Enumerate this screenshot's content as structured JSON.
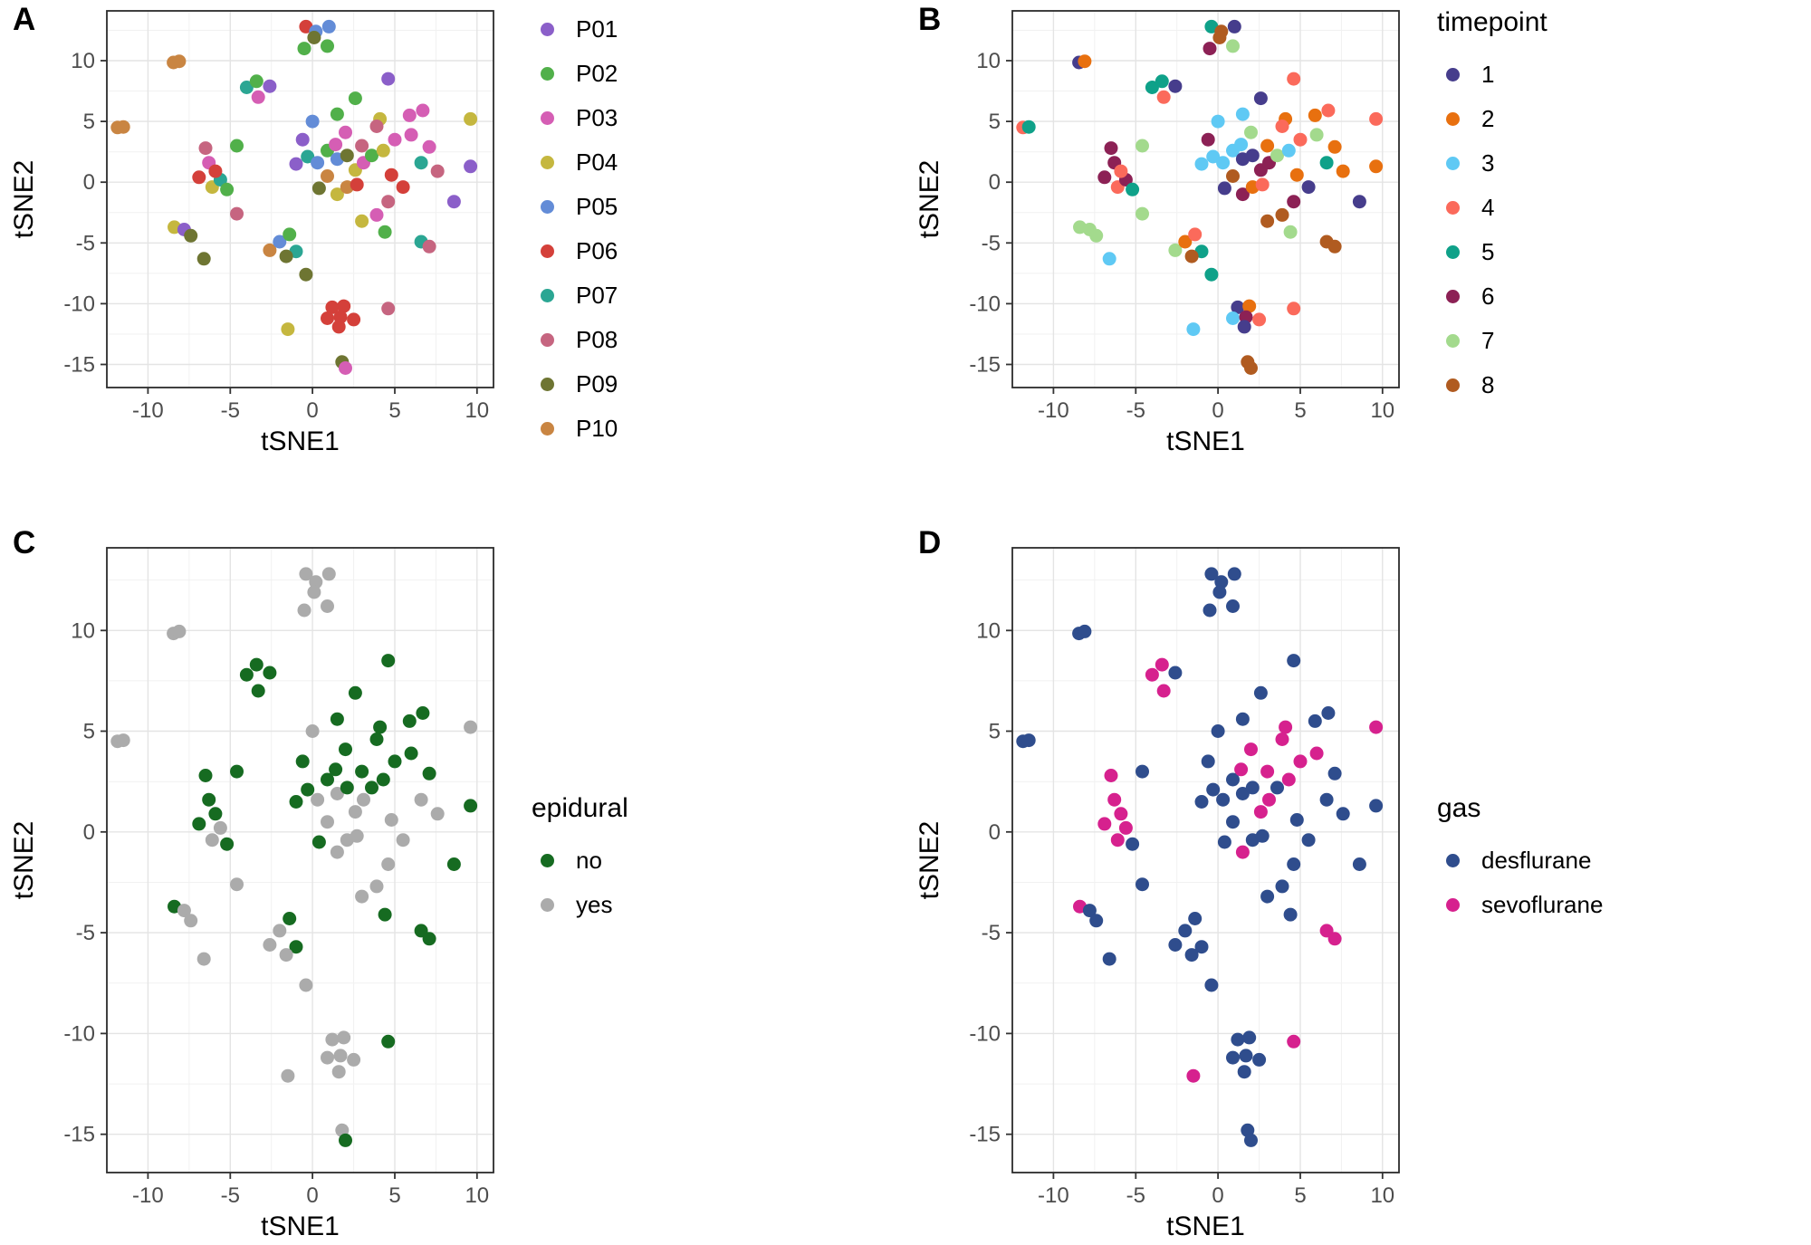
{
  "figure": {
    "background": "#FFFFFF",
    "description": "Four tSNE scatter plot panels colored by patient, timepoint, epidural and gas"
  },
  "chart_data": {
    "type": "scatter",
    "layout": "2x2-multi-panel",
    "axes": {
      "xlabel": "tSNE1",
      "ylabel": "tSNE2",
      "xlim": [
        -12.5,
        11
      ],
      "ylim": [
        -16.9,
        14.1
      ],
      "xticks": [
        -10,
        -5,
        0,
        5,
        10
      ],
      "yticks": [
        -15,
        -10,
        -5,
        0,
        5,
        10
      ],
      "grid": true
    },
    "style": {
      "background": "#FFFFFF",
      "panel_border": "#2B2B2B",
      "grid_major": "#E4E4E4",
      "grid_minor": "#F1F1F1",
      "tick_color": "#333333",
      "tick_label_color": "#4D4D4D",
      "point_radius_px": 7.5
    },
    "panels": [
      {
        "panel": "A",
        "panel_label": "A",
        "color_by": "patient",
        "legend_title": "",
        "legend_position": "right",
        "groups": [
          {
            "label": "P01",
            "color": "#8B5FC9"
          },
          {
            "label": "P02",
            "color": "#51B04A"
          },
          {
            "label": "P03",
            "color": "#D55EB4"
          },
          {
            "label": "P04",
            "color": "#C5B73F"
          },
          {
            "label": "P05",
            "color": "#638CD7"
          },
          {
            "label": "P06",
            "color": "#D4403A"
          },
          {
            "label": "P07",
            "color": "#2BA693"
          },
          {
            "label": "P08",
            "color": "#C66580"
          },
          {
            "label": "P09",
            "color": "#6E7532"
          },
          {
            "label": "P10",
            "color": "#C98542"
          }
        ]
      },
      {
        "panel": "B",
        "panel_label": "B",
        "color_by": "timepoint",
        "legend_title": "timepoint",
        "legend_position": "right",
        "groups": [
          {
            "label": "1",
            "color": "#463D8C"
          },
          {
            "label": "2",
            "color": "#E8700F"
          },
          {
            "label": "3",
            "color": "#5FC9F4"
          },
          {
            "label": "4",
            "color": "#FB6A5B"
          },
          {
            "label": "5",
            "color": "#0FA189"
          },
          {
            "label": "6",
            "color": "#8C2155"
          },
          {
            "label": "7",
            "color": "#A3DA8D"
          },
          {
            "label": "8",
            "color": "#B05B20"
          }
        ]
      },
      {
        "panel": "C",
        "panel_label": "C",
        "color_by": "epidural",
        "legend_title": "epidural",
        "legend_position": "right",
        "groups": [
          {
            "label": "no",
            "color": "#166B21"
          },
          {
            "label": "yes",
            "color": "#ABABAB"
          }
        ]
      },
      {
        "panel": "D",
        "panel_label": "D",
        "color_by": "gas",
        "legend_title": "gas",
        "legend_position": "right",
        "groups": [
          {
            "label": "desflurane",
            "color": "#2F4D8D"
          },
          {
            "label": "sevoflurane",
            "color": "#D6218E"
          }
        ]
      }
    ],
    "points_columns": [
      "x",
      "y",
      "patient",
      "timepoint",
      "epidural",
      "gas"
    ],
    "points": [
      [
        -11.85,
        4.5,
        "P10",
        "4",
        "yes",
        "desflurane"
      ],
      [
        -11.5,
        4.55,
        "P10",
        "5",
        "yes",
        "desflurane"
      ],
      [
        -8.45,
        9.85,
        "P10",
        "1",
        "yes",
        "desflurane"
      ],
      [
        -8.1,
        9.95,
        "P10",
        "2",
        "yes",
        "desflurane"
      ],
      [
        -8.4,
        -3.7,
        "P04",
        "7",
        "no",
        "sevoflurane"
      ],
      [
        -7.8,
        -3.9,
        "P01",
        "7",
        "yes",
        "desflurane"
      ],
      [
        -7.4,
        -4.4,
        "P09",
        "7",
        "yes",
        "desflurane"
      ],
      [
        -6.6,
        -6.3,
        "P09",
        "3",
        "yes",
        "desflurane"
      ],
      [
        -6.9,
        0.4,
        "P06",
        "6",
        "no",
        "sevoflurane"
      ],
      [
        -6.3,
        1.6,
        "P03",
        "6",
        "no",
        "sevoflurane"
      ],
      [
        -6.5,
        2.8,
        "P08",
        "6",
        "no",
        "sevoflurane"
      ],
      [
        -6.1,
        -0.4,
        "P04",
        "4",
        "yes",
        "sevoflurane"
      ],
      [
        -5.6,
        0.2,
        "P07",
        "6",
        "yes",
        "sevoflurane"
      ],
      [
        -5.9,
        0.9,
        "P06",
        "4",
        "no",
        "sevoflurane"
      ],
      [
        -5.2,
        -0.6,
        "P02",
        "5",
        "no",
        "desflurane"
      ],
      [
        -4.6,
        3.0,
        "P02",
        "7",
        "no",
        "desflurane"
      ],
      [
        -4.6,
        -2.6,
        "P08",
        "7",
        "yes",
        "desflurane"
      ],
      [
        -4.0,
        7.8,
        "P07",
        "5",
        "no",
        "sevoflurane"
      ],
      [
        -3.4,
        8.3,
        "P02",
        "5",
        "no",
        "sevoflurane"
      ],
      [
        -2.6,
        7.9,
        "P01",
        "1",
        "no",
        "desflurane"
      ],
      [
        -3.3,
        7.0,
        "P03",
        "4",
        "no",
        "sevoflurane"
      ],
      [
        -0.4,
        12.8,
        "P06",
        "5",
        "yes",
        "desflurane"
      ],
      [
        0.2,
        12.4,
        "P05",
        "8",
        "yes",
        "desflurane"
      ],
      [
        1.0,
        12.8,
        "P05",
        "1",
        "yes",
        "desflurane"
      ],
      [
        -0.5,
        11.0,
        "P02",
        "6",
        "yes",
        "desflurane"
      ],
      [
        0.9,
        11.2,
        "P02",
        "7",
        "yes",
        "desflurane"
      ],
      [
        0.1,
        11.9,
        "P09",
        "8",
        "yes",
        "desflurane"
      ],
      [
        0.0,
        5.0,
        "P05",
        "3",
        "yes",
        "desflurane"
      ],
      [
        -0.6,
        3.5,
        "P01",
        "6",
        "no",
        "desflurane"
      ],
      [
        1.5,
        5.6,
        "P02",
        "3",
        "no",
        "desflurane"
      ],
      [
        2.0,
        4.1,
        "P03",
        "7",
        "no",
        "sevoflurane"
      ],
      [
        2.6,
        6.9,
        "P02",
        "1",
        "no",
        "desflurane"
      ],
      [
        4.1,
        5.2,
        "P04",
        "2",
        "no",
        "sevoflurane"
      ],
      [
        4.6,
        8.5,
        "P01",
        "4",
        "no",
        "desflurane"
      ],
      [
        -1.0,
        1.5,
        "P01",
        "3",
        "no",
        "desflurane"
      ],
      [
        -0.3,
        2.1,
        "P07",
        "3",
        "no",
        "desflurane"
      ],
      [
        0.3,
        1.6,
        "P05",
        "3",
        "yes",
        "desflurane"
      ],
      [
        0.9,
        2.6,
        "P02",
        "3",
        "no",
        "desflurane"
      ],
      [
        1.5,
        1.9,
        "P05",
        "1",
        "yes",
        "desflurane"
      ],
      [
        1.4,
        3.1,
        "P03",
        "3",
        "no",
        "sevoflurane"
      ],
      [
        2.1,
        2.2,
        "P09",
        "1",
        "no",
        "desflurane"
      ],
      [
        2.6,
        1.0,
        "P04",
        "6",
        "yes",
        "sevoflurane"
      ],
      [
        3.1,
        1.6,
        "P03",
        "6",
        "yes",
        "sevoflurane"
      ],
      [
        3.6,
        2.2,
        "P02",
        "7",
        "no",
        "desflurane"
      ],
      [
        3.0,
        3.0,
        "P08",
        "2",
        "no",
        "sevoflurane"
      ],
      [
        0.9,
        0.5,
        "P10",
        "8",
        "yes",
        "desflurane"
      ],
      [
        0.4,
        -0.5,
        "P09",
        "1",
        "no",
        "desflurane"
      ],
      [
        1.5,
        -1.0,
        "P04",
        "6",
        "yes",
        "sevoflurane"
      ],
      [
        2.1,
        -0.4,
        "P10",
        "2",
        "yes",
        "desflurane"
      ],
      [
        2.7,
        -0.2,
        "P06",
        "4",
        "yes",
        "desflurane"
      ],
      [
        4.3,
        2.6,
        "P04",
        "3",
        "no",
        "sevoflurane"
      ],
      [
        4.8,
        0.6,
        "P06",
        "2",
        "yes",
        "desflurane"
      ],
      [
        5.9,
        5.5,
        "P03",
        "2",
        "no",
        "desflurane"
      ],
      [
        6.7,
        5.9,
        "P03",
        "4",
        "no",
        "desflurane"
      ],
      [
        9.6,
        5.2,
        "P04",
        "4",
        "yes",
        "sevoflurane"
      ],
      [
        6.0,
        3.9,
        "P03",
        "7",
        "no",
        "sevoflurane"
      ],
      [
        5.0,
        3.5,
        "P03",
        "4",
        "no",
        "sevoflurane"
      ],
      [
        7.1,
        2.9,
        "P03",
        "2",
        "no",
        "desflurane"
      ],
      [
        6.6,
        1.6,
        "P07",
        "5",
        "yes",
        "desflurane"
      ],
      [
        7.6,
        0.9,
        "P08",
        "2",
        "yes",
        "desflurane"
      ],
      [
        8.6,
        -1.6,
        "P01",
        "1",
        "no",
        "desflurane"
      ],
      [
        9.6,
        1.3,
        "P01",
        "2",
        "no",
        "desflurane"
      ],
      [
        4.6,
        -1.6,
        "P08",
        "6",
        "yes",
        "desflurane"
      ],
      [
        5.5,
        -0.4,
        "P06",
        "1",
        "yes",
        "desflurane"
      ],
      [
        3.9,
        4.6,
        "P08",
        "4",
        "no",
        "sevoflurane"
      ],
      [
        3.0,
        -3.2,
        "P04",
        "8",
        "yes",
        "desflurane"
      ],
      [
        3.9,
        -2.7,
        "P03",
        "8",
        "yes",
        "desflurane"
      ],
      [
        4.4,
        -4.1,
        "P02",
        "7",
        "no",
        "desflurane"
      ],
      [
        6.6,
        -4.9,
        "P07",
        "8",
        "no",
        "sevoflurane"
      ],
      [
        7.1,
        -5.3,
        "P08",
        "8",
        "no",
        "sevoflurane"
      ],
      [
        -2.6,
        -5.6,
        "P10",
        "7",
        "yes",
        "desflurane"
      ],
      [
        -2.0,
        -4.9,
        "P05",
        "2",
        "yes",
        "desflurane"
      ],
      [
        -1.4,
        -4.3,
        "P02",
        "4",
        "no",
        "desflurane"
      ],
      [
        -1.0,
        -5.7,
        "P07",
        "5",
        "no",
        "desflurane"
      ],
      [
        -1.6,
        -6.1,
        "P09",
        "8",
        "yes",
        "desflurane"
      ],
      [
        -0.4,
        -7.6,
        "P09",
        "5",
        "yes",
        "desflurane"
      ],
      [
        -1.5,
        -12.1,
        "P04",
        "3",
        "yes",
        "sevoflurane"
      ],
      [
        1.2,
        -10.3,
        "P06",
        "1",
        "yes",
        "desflurane"
      ],
      [
        1.9,
        -10.2,
        "P06",
        "2",
        "yes",
        "desflurane"
      ],
      [
        0.9,
        -11.2,
        "P06",
        "3",
        "yes",
        "desflurane"
      ],
      [
        1.7,
        -11.1,
        "P06",
        "6",
        "yes",
        "desflurane"
      ],
      [
        2.5,
        -11.3,
        "P06",
        "4",
        "yes",
        "desflurane"
      ],
      [
        1.6,
        -11.9,
        "P06",
        "1",
        "yes",
        "desflurane"
      ],
      [
        4.6,
        -10.4,
        "P08",
        "4",
        "no",
        "sevoflurane"
      ],
      [
        1.8,
        -14.8,
        "P09",
        "8",
        "yes",
        "desflurane"
      ],
      [
        2.0,
        -15.3,
        "P03",
        "8",
        "no",
        "desflurane"
      ]
    ]
  }
}
